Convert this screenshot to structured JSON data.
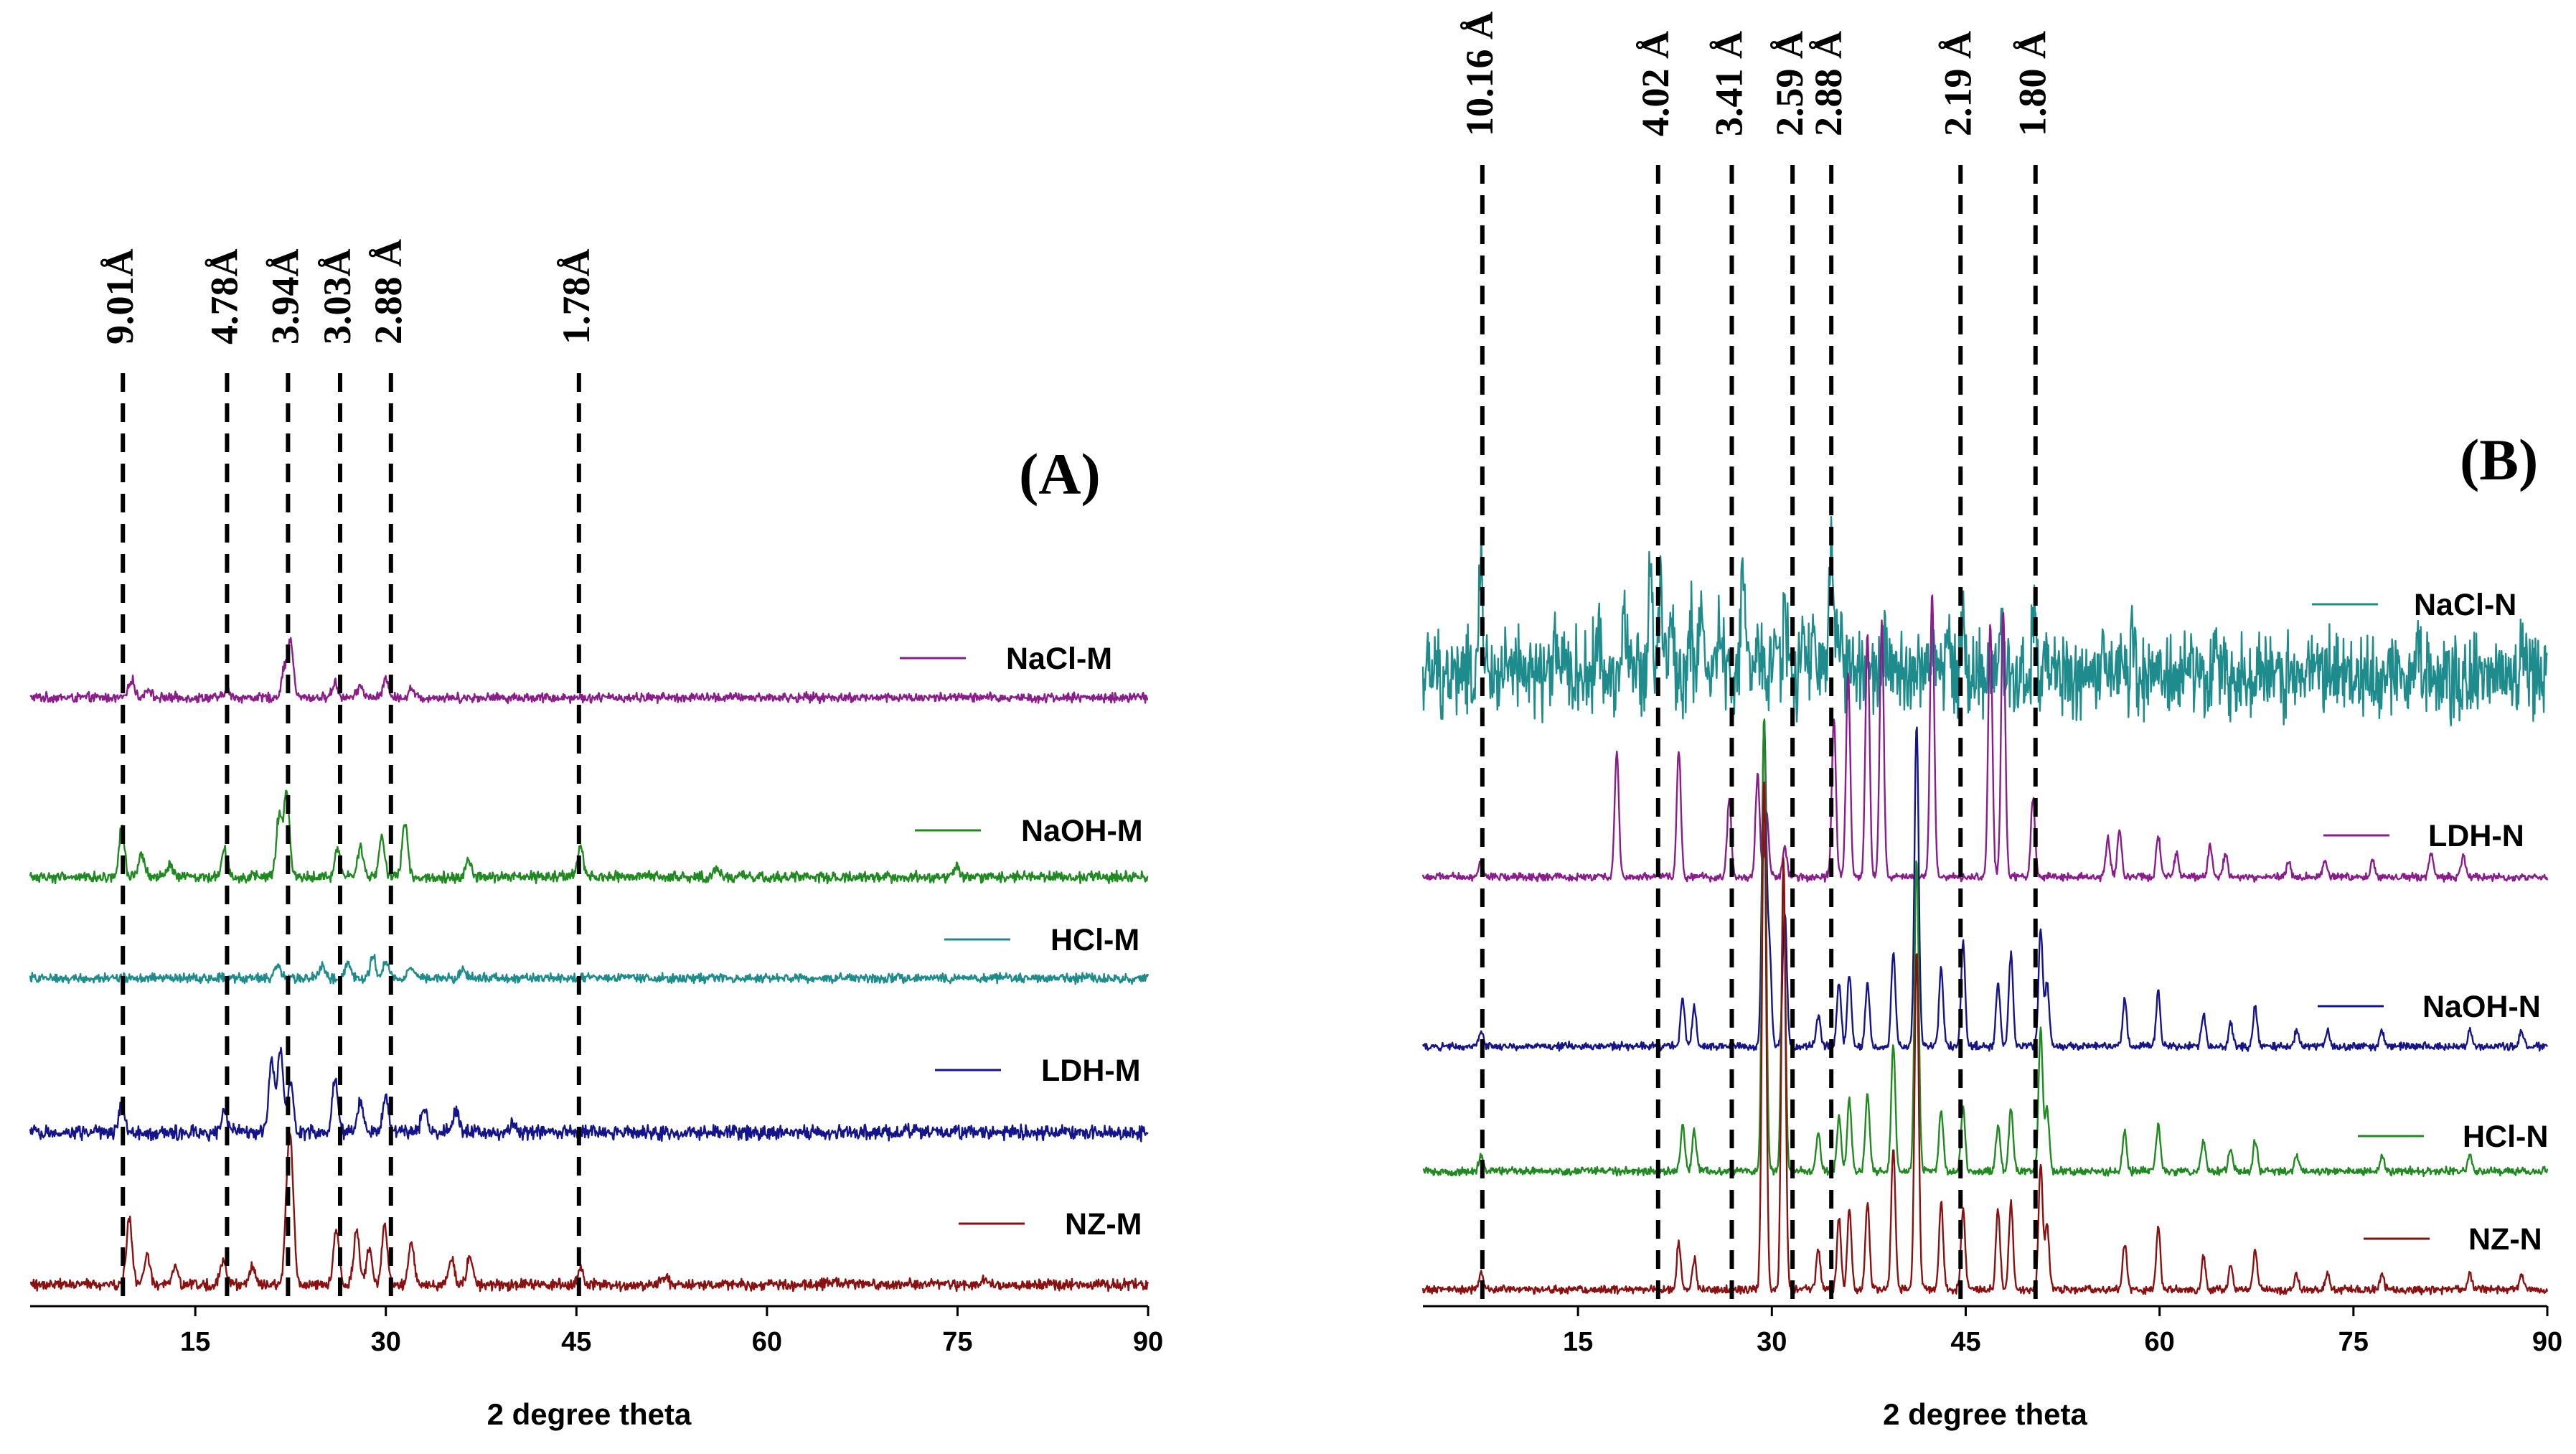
{
  "chart_data": [
    {
      "type": "line",
      "panel_label": "(A)",
      "xlabel": "2 degree theta",
      "ylabel": "",
      "xlim": [
        2,
        90
      ],
      "xticks": [
        "15",
        "30",
        "45",
        "60",
        "75",
        "90"
      ],
      "xtick_values": [
        15,
        30,
        45,
        60,
        75,
        90
      ],
      "series": [
        {
          "name": "NaCl-M",
          "color": "#8b1c8b",
          "peaks": [
            [
              10,
              0.3
            ],
            [
              11.3,
              0.15
            ],
            [
              17.5,
              0.12
            ],
            [
              22,
              0.45
            ],
            [
              22.5,
              0.9
            ],
            [
              26,
              0.25
            ],
            [
              28,
              0.2
            ],
            [
              30,
              0.3
            ],
            [
              32,
              0.15
            ]
          ]
        },
        {
          "name": "NaOH-M",
          "color": "#1f8a1f",
          "peaks": [
            [
              9.2,
              0.8
            ],
            [
              10.8,
              0.35
            ],
            [
              13,
              0.2
            ],
            [
              17.3,
              0.5
            ],
            [
              21.6,
              1.0
            ],
            [
              22.2,
              1.4
            ],
            [
              26.2,
              0.45
            ],
            [
              28,
              0.5
            ],
            [
              29.7,
              0.65
            ],
            [
              31.5,
              0.9
            ],
            [
              36.5,
              0.3
            ],
            [
              45.3,
              0.5
            ],
            [
              56,
              0.15
            ],
            [
              75,
              0.15
            ]
          ]
        },
        {
          "name": "HCl-M",
          "color": "#1e8c8c",
          "peaks": [
            [
              21.5,
              0.2
            ],
            [
              25,
              0.2
            ],
            [
              27,
              0.25
            ],
            [
              29,
              0.35
            ],
            [
              30,
              0.3
            ],
            [
              32,
              0.2
            ],
            [
              36,
              0.15
            ]
          ]
        },
        {
          "name": "LDH-M",
          "color": "#14148c",
          "peaks": [
            [
              9.2,
              0.5
            ],
            [
              17.3,
              0.35
            ],
            [
              21,
              1.2
            ],
            [
              21.7,
              1.4
            ],
            [
              22.5,
              0.8
            ],
            [
              26,
              0.9
            ],
            [
              28,
              0.5
            ],
            [
              30,
              0.6
            ],
            [
              33,
              0.4
            ],
            [
              35.5,
              0.4
            ],
            [
              40,
              0.15
            ]
          ]
        },
        {
          "name": "NZ-M",
          "color": "#8b1010",
          "peaks": [
            [
              9.8,
              1.1
            ],
            [
              11.2,
              0.5
            ],
            [
              13.4,
              0.3
            ],
            [
              17.2,
              0.4
            ],
            [
              19.5,
              0.3
            ],
            [
              22.3,
              1.7
            ],
            [
              22.6,
              1.4
            ],
            [
              26.1,
              0.9
            ],
            [
              27.7,
              0.9
            ],
            [
              28.7,
              0.6
            ],
            [
              29.9,
              1.0
            ],
            [
              32,
              0.7
            ],
            [
              35.2,
              0.4
            ],
            [
              36.6,
              0.45
            ],
            [
              45.3,
              0.25
            ],
            [
              52,
              0.15
            ],
            [
              77,
              0.1
            ]
          ]
        }
      ],
      "reference_lines": [
        {
          "label": "9.01Å",
          "x": 9.3
        },
        {
          "label": "4.78Å",
          "x": 17.5
        },
        {
          "label": "3.94Å",
          "x": 22.3
        },
        {
          "label": "3.03Å",
          "x": 26.4
        },
        {
          "label": "2.88 Å",
          "x": 30.4
        },
        {
          "label": "1.78Å",
          "x": 45.2
        }
      ]
    },
    {
      "type": "line",
      "panel_label": "(B)",
      "xlabel": "2 degree theta",
      "ylabel": "",
      "xlim": [
        3,
        90
      ],
      "xticks": [
        "15",
        "30",
        "45",
        "60",
        "75",
        "90"
      ],
      "xtick_values": [
        15,
        30,
        45,
        60,
        75,
        90
      ],
      "series": [
        {
          "name": "NaCl-N",
          "color": "#1e8c8c",
          "peaks": [
            [
              7.5,
              1.3
            ],
            [
              13.3,
              0.5
            ],
            [
              16.5,
              0.6
            ],
            [
              18.6,
              0.8
            ],
            [
              20.6,
              1.5
            ],
            [
              21.4,
              1.3
            ],
            [
              22.2,
              0.8
            ],
            [
              23.7,
              0.6
            ],
            [
              24.5,
              0.9
            ],
            [
              26,
              0.6
            ],
            [
              27.8,
              1.3
            ],
            [
              29.1,
              0.4
            ],
            [
              30.3,
              0.6
            ],
            [
              31,
              0.8
            ],
            [
              32.4,
              0.4
            ],
            [
              33.2,
              0.5
            ],
            [
              34.6,
              1.6
            ],
            [
              35.3,
              0.6
            ],
            [
              36,
              0.5
            ],
            [
              38.8,
              0.4
            ],
            [
              42.4,
              0.5
            ],
            [
              43.6,
              0.6
            ],
            [
              44.8,
              0.8
            ],
            [
              47.7,
              0.7
            ],
            [
              50.3,
              0.8
            ],
            [
              58,
              0.35
            ],
            [
              65,
              0.3
            ],
            [
              72,
              0.3
            ],
            [
              80,
              0.3
            ],
            [
              88,
              0.3
            ]
          ]
        },
        {
          "name": "LDH-N",
          "color": "#8b1c8b",
          "peaks": [
            [
              7.5,
              0.2
            ],
            [
              18,
              1.6
            ],
            [
              22.8,
              1.6
            ],
            [
              26.7,
              1.0
            ],
            [
              28.9,
              1.3
            ],
            [
              29.6,
              0.8
            ],
            [
              31,
              0.4
            ],
            [
              34.8,
              2.0
            ],
            [
              35.9,
              2.6
            ],
            [
              37.4,
              3.1
            ],
            [
              38.5,
              3.2
            ],
            [
              42.4,
              3.6
            ],
            [
              46.9,
              3.2
            ],
            [
              47.9,
              3.4
            ],
            [
              50.2,
              1.0
            ],
            [
              56,
              0.5
            ],
            [
              56.9,
              0.6
            ],
            [
              59.9,
              0.5
            ],
            [
              61.3,
              0.3
            ],
            [
              63.9,
              0.4
            ],
            [
              65.1,
              0.3
            ],
            [
              70,
              0.2
            ],
            [
              72.8,
              0.2
            ],
            [
              76.5,
              0.2
            ],
            [
              81,
              0.3
            ],
            [
              83.5,
              0.3
            ]
          ]
        },
        {
          "name": "NaOH-N",
          "color": "#14148c",
          "peaks": [
            [
              7.5,
              0.2
            ],
            [
              23.1,
              0.6
            ],
            [
              24,
              0.5
            ],
            [
              29.4,
              4.1
            ],
            [
              29.8,
              1.3
            ],
            [
              31,
              1.7
            ],
            [
              33.6,
              0.4
            ],
            [
              35.2,
              0.8
            ],
            [
              36,
              0.9
            ],
            [
              37.4,
              0.8
            ],
            [
              39.4,
              1.2
            ],
            [
              41.2,
              4.1
            ],
            [
              43.1,
              1.0
            ],
            [
              44.8,
              1.3
            ],
            [
              47.5,
              0.8
            ],
            [
              48.5,
              1.2
            ],
            [
              50.8,
              1.5
            ],
            [
              51.3,
              0.8
            ],
            [
              57.3,
              0.6
            ],
            [
              59.9,
              0.7
            ],
            [
              63.4,
              0.4
            ],
            [
              65.5,
              0.3
            ],
            [
              67.4,
              0.5
            ],
            [
              70.6,
              0.2
            ],
            [
              73,
              0.2
            ],
            [
              77.2,
              0.2
            ],
            [
              84,
              0.2
            ],
            [
              88,
              0.2
            ]
          ]
        },
        {
          "name": "HCl-N",
          "color": "#1f8a1f",
          "peaks": [
            [
              7.5,
              0.2
            ],
            [
              23.1,
              0.6
            ],
            [
              24,
              0.5
            ],
            [
              29.4,
              5.8
            ],
            [
              30.9,
              3.6
            ],
            [
              33.6,
              0.5
            ],
            [
              35.2,
              0.7
            ],
            [
              36,
              0.9
            ],
            [
              37.4,
              1.0
            ],
            [
              39.4,
              1.6
            ],
            [
              41.2,
              4.0
            ],
            [
              43.1,
              0.8
            ],
            [
              44.8,
              0.8
            ],
            [
              47.5,
              0.6
            ],
            [
              48.5,
              0.8
            ],
            [
              50.8,
              1.8
            ],
            [
              51.3,
              0.8
            ],
            [
              57.3,
              0.5
            ],
            [
              59.9,
              0.6
            ],
            [
              63.4,
              0.4
            ],
            [
              65.5,
              0.3
            ],
            [
              67.4,
              0.4
            ],
            [
              70.6,
              0.2
            ],
            [
              77.2,
              0.2
            ],
            [
              84,
              0.2
            ]
          ]
        },
        {
          "name": "NZ-N",
          "color": "#8b1010",
          "peaks": [
            [
              7.5,
              0.2
            ],
            [
              22.8,
              0.6
            ],
            [
              24,
              0.4
            ],
            [
              29.4,
              6.5
            ],
            [
              30.9,
              5.5
            ],
            [
              33.6,
              0.5
            ],
            [
              35.2,
              0.9
            ],
            [
              36,
              1.0
            ],
            [
              37.4,
              1.1
            ],
            [
              39.4,
              1.8
            ],
            [
              41.2,
              4.3
            ],
            [
              43.1,
              1.1
            ],
            [
              44.8,
              1.0
            ],
            [
              47.5,
              1.0
            ],
            [
              48.5,
              1.1
            ],
            [
              50.8,
              1.6
            ],
            [
              51.3,
              0.8
            ],
            [
              57.3,
              0.6
            ],
            [
              59.9,
              0.8
            ],
            [
              63.4,
              0.4
            ],
            [
              65.5,
              0.3
            ],
            [
              67.4,
              0.5
            ],
            [
              70.6,
              0.2
            ],
            [
              73,
              0.2
            ],
            [
              77.2,
              0.2
            ],
            [
              84,
              0.2
            ],
            [
              88,
              0.2
            ]
          ]
        }
      ],
      "reference_lines": [
        {
          "label": "10.16 Å",
          "x": 7.6
        },
        {
          "label": "4.02 Å",
          "x": 21.2
        },
        {
          "label": "3.41 Å",
          "x": 26.9
        },
        {
          "label": "2.59 Å",
          "x": 31.6
        },
        {
          "label": "2.88 Å",
          "x": 34.6
        },
        {
          "label": "2.19 Å",
          "x": 44.6
        },
        {
          "label": "1.80 Å",
          "x": 50.4
        }
      ]
    }
  ]
}
